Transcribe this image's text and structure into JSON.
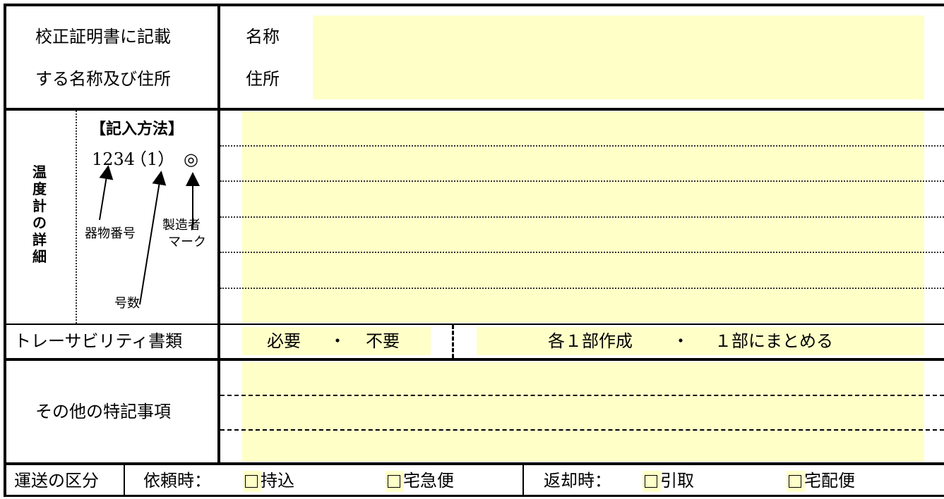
{
  "address_section": {
    "left_label_line1": "校正証明書に記載",
    "left_label_line2": "する名称及び住所",
    "name_label": "名称",
    "address_label": "住所"
  },
  "thermometer_section": {
    "vertical_label": [
      "温",
      "度",
      "計",
      "の",
      "詳",
      "細"
    ],
    "method_title": "【記入方法】",
    "example_number": "1234",
    "example_paren": "（1）",
    "example_mark": "◎",
    "annotation_instrument_number": "器物番号",
    "annotation_manufacturer_line1": "製造者",
    "annotation_manufacturer_line2": "マーク",
    "annotation_number": "号数"
  },
  "traceability": {
    "label": "トレーサビリティ書類",
    "required": "必要",
    "separator": "・",
    "not_required": "不要",
    "each_one": "各１部作成",
    "separator2": "・",
    "combined": "１部にまとめる"
  },
  "other_notes": {
    "label": "その他の特記事項"
  },
  "transport": {
    "label": "運送の区分",
    "request_label": "依頼時：",
    "request_option1": "持込",
    "request_option2": "宅急便",
    "return_label": "返却時：",
    "return_option1": "引取",
    "return_option2": "宅配便"
  },
  "colors": {
    "highlight": "#ffffc8",
    "border": "#000000"
  }
}
